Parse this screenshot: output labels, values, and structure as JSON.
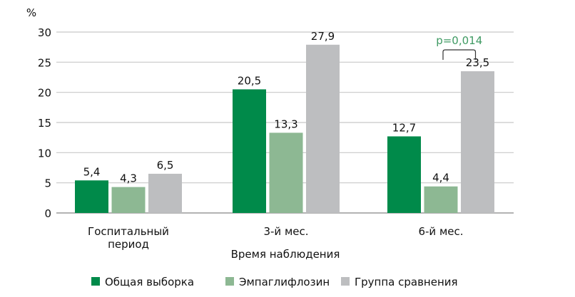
{
  "chart_data": {
    "type": "bar",
    "ylabel": "%",
    "xlabel": "Время наблюдения",
    "ylim": [
      0,
      30
    ],
    "yticks": [
      0,
      5,
      10,
      15,
      20,
      25,
      30
    ],
    "grid": true,
    "categories": [
      "Госпитальный период",
      "3-й мес.",
      "6-й мес."
    ],
    "category_lines": [
      [
        "Госпитальный",
        "период"
      ],
      [
        "3-й мес."
      ],
      [
        "6-й мес."
      ]
    ],
    "series": [
      {
        "name": "Общая выборка",
        "color": "#008a4a",
        "values": [
          5.4,
          20.5,
          12.7
        ],
        "labels": [
          "5,4",
          "20,5",
          "12,7"
        ]
      },
      {
        "name": "Эмпаглифлозин",
        "color": "#8db893",
        "values": [
          4.3,
          13.3,
          4.4
        ],
        "labels": [
          "4,3",
          "13,3",
          "4,4"
        ]
      },
      {
        "name": "Группа сравнения",
        "color": "#bdbec0",
        "values": [
          6.5,
          27.9,
          23.5
        ],
        "labels": [
          "6,5",
          "27,9",
          "23,5"
        ]
      }
    ],
    "annotation": {
      "text": "p=0,014",
      "color": "#3f9a63",
      "category": "6-й мес.",
      "between": [
        "Эмпаглифлозин",
        "Группа сравнения"
      ]
    },
    "legend_position": "bottom"
  }
}
